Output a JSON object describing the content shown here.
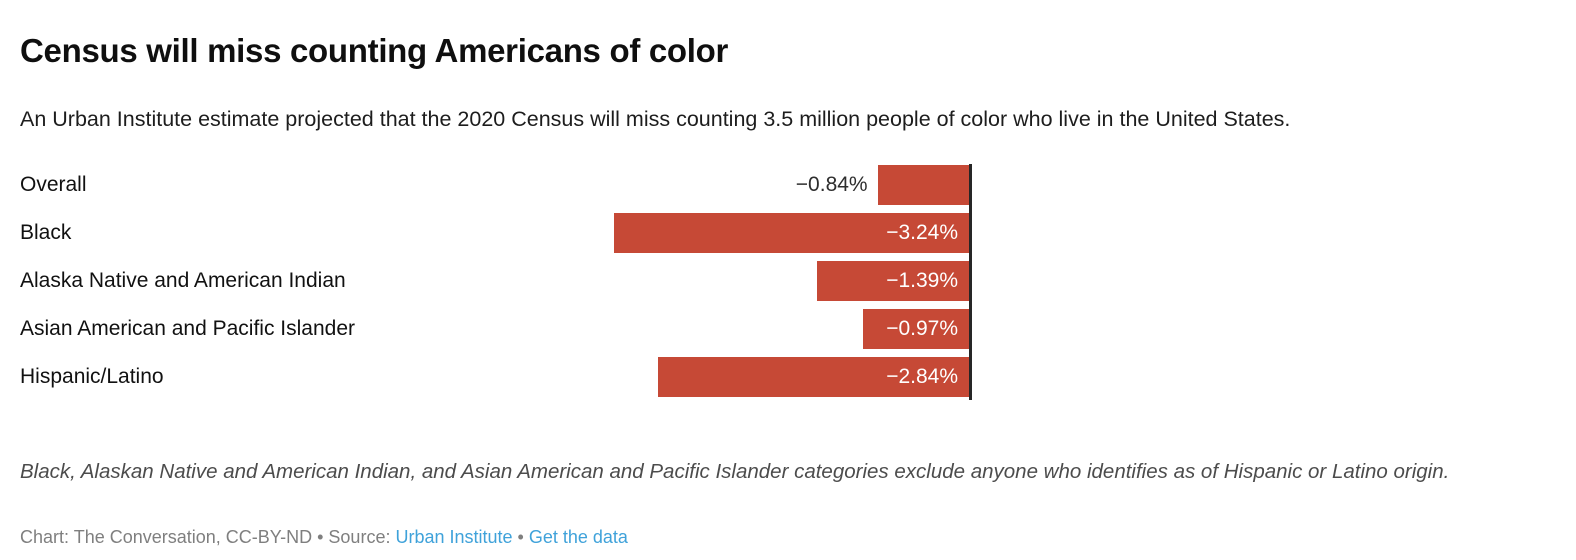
{
  "header": {
    "title": "Census will miss counting Americans of color",
    "subtitle": "An Urban Institute estimate projected that the 2020 Census will miss counting 3.5 million people of color who live in the United States."
  },
  "chart_data": {
    "type": "bar",
    "orientation": "horizontal",
    "title": "Census will miss counting Americans of color",
    "categories": [
      "Overall",
      "Black",
      "Alaska Native and American Indian",
      "Asian American and Pacific Islander",
      "Hispanic/Latino"
    ],
    "values": [
      -0.84,
      -3.24,
      -1.39,
      -0.97,
      -2.84
    ],
    "value_labels": [
      "−0.84%",
      "−3.24%",
      "−1.39%",
      "−0.97%",
      "−2.84%"
    ],
    "unit": "%",
    "xlim": [
      -3.5,
      0
    ],
    "bar_color": "#c64936",
    "baseline_color": "#262626",
    "grid": false,
    "legend": false
  },
  "footer": {
    "note": "Black, Alaskan Native and American Indian, and Asian American and Pacific Islander categories exclude anyone who identifies as of Hispanic or Latino origin.",
    "credit_prefix": "Chart: The Conversation, CC-BY-ND • Source: ",
    "source_link": "Urban Institute",
    "separator": " • ",
    "data_link": "Get the data",
    "link_color": "#3fa2da"
  }
}
